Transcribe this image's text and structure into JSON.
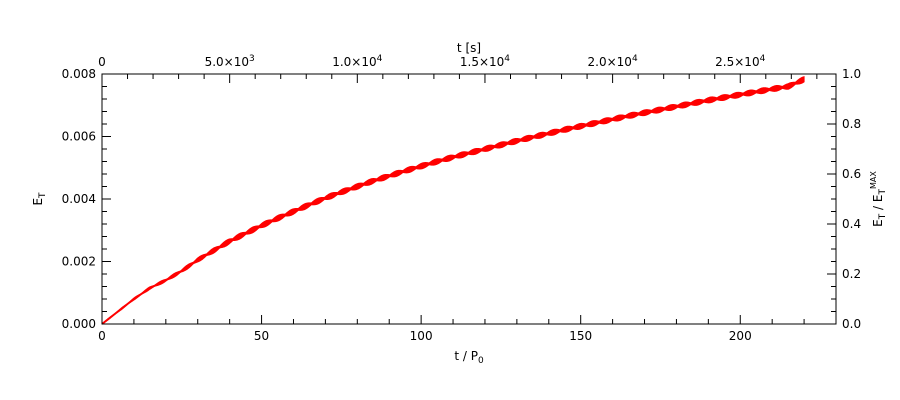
{
  "chart_data": {
    "type": "line",
    "title": "",
    "xlabel": "t / P",
    "xlabel_sub": "0",
    "ylabel": "E",
    "ylabel_sub": "T",
    "x2label": "t [s]",
    "y2label": "E",
    "y2label_sub": "T",
    "y2label_sep": " / E",
    "y2label_sub2": "T",
    "y2label_sup2": "MAX",
    "xlim": [
      0,
      230
    ],
    "ylim": [
      0,
      0.008
    ],
    "x2lim": [
      0,
      28750
    ],
    "y2lim": [
      0,
      1.0
    ],
    "grid": false,
    "legend": "none",
    "series_color": "#ff0000",
    "xticks": [
      {
        "value": 0,
        "label": "0"
      },
      {
        "value": 50,
        "label": "50"
      },
      {
        "value": 100,
        "label": "100"
      },
      {
        "value": 150,
        "label": "150"
      },
      {
        "value": 200,
        "label": "200"
      }
    ],
    "yticks": [
      {
        "value": 0,
        "label": "0.000"
      },
      {
        "value": 0.002,
        "label": "0.002"
      },
      {
        "value": 0.004,
        "label": "0.004"
      },
      {
        "value": 0.006,
        "label": "0.006"
      },
      {
        "value": 0.008,
        "label": "0.008"
      }
    ],
    "x2ticks": [
      {
        "value": 0,
        "mant": "0",
        "exp": ""
      },
      {
        "value": 5000,
        "mant": "5.0×10",
        "exp": "3"
      },
      {
        "value": 10000,
        "mant": "1.0×10",
        "exp": "4"
      },
      {
        "value": 15000,
        "mant": "1.5×10",
        "exp": "4"
      },
      {
        "value": 20000,
        "mant": "2.0×10",
        "exp": "4"
      },
      {
        "value": 25000,
        "mant": "2.5×10",
        "exp": "4"
      }
    ],
    "y2ticks": [
      {
        "value": 0.0,
        "label": "0.0"
      },
      {
        "value": 0.2,
        "label": "0.2"
      },
      {
        "value": 0.4,
        "label": "0.4"
      },
      {
        "value": 0.6,
        "label": "0.6"
      },
      {
        "value": 0.8,
        "label": "0.8"
      },
      {
        "value": 1.0,
        "label": "1.0"
      }
    ],
    "series": [
      {
        "x": [
          0,
          5,
          10,
          15,
          20,
          25,
          30,
          35,
          40,
          45,
          50,
          55,
          60,
          65,
          70,
          75,
          80,
          85,
          90,
          95,
          100,
          105,
          110,
          115,
          120,
          125,
          130,
          135,
          140,
          145,
          150,
          155,
          160,
          165,
          170,
          175,
          180,
          185,
          190,
          195,
          200,
          205,
          210,
          215,
          220
        ],
        "y": [
          0.0,
          0.0004,
          0.0008,
          0.00115,
          0.0014,
          0.0017,
          0.00205,
          0.00235,
          0.00265,
          0.0029,
          0.00315,
          0.00338,
          0.0036,
          0.00382,
          0.00403,
          0.00422,
          0.0044,
          0.00458,
          0.00474,
          0.0049,
          0.00505,
          0.0052,
          0.00534,
          0.00547,
          0.0056,
          0.00573,
          0.00586,
          0.00598,
          0.0061,
          0.00622,
          0.00633,
          0.00644,
          0.00655,
          0.00666,
          0.00676,
          0.00686,
          0.00696,
          0.00706,
          0.00716,
          0.00725,
          0.00734,
          0.00743,
          0.00752,
          0.0076,
          0.00783
        ],
        "oscillation_amplitude": 0.00012
      }
    ]
  }
}
